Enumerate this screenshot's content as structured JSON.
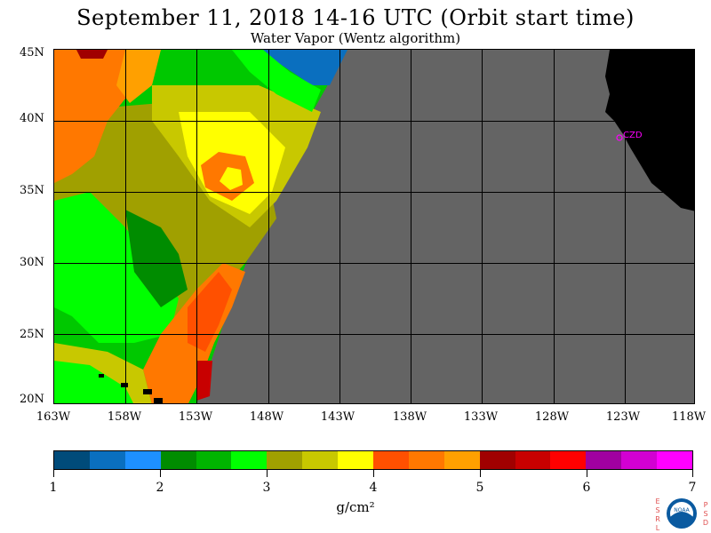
{
  "title": "September 11, 2018  14-16 UTC  (Orbit start time)",
  "subtitle": "Water Vapor (Wentz algorithm)",
  "map": {
    "lat_labels": [
      "45N",
      "40N",
      "35N",
      "30N",
      "25N",
      "20N"
    ],
    "lon_labels": [
      "163W",
      "158W",
      "153W",
      "148W",
      "143W",
      "138W",
      "133W",
      "128W",
      "123W",
      "118W"
    ],
    "station_label": "CZD",
    "colors": {
      "no_data": "#646464",
      "land": "#000000",
      "grid": "#000000",
      "station": "#ff00ff"
    }
  },
  "colorbar": {
    "colors": [
      "#004b7a",
      "#0a6fbf",
      "#1e90ff",
      "#008c00",
      "#00b400",
      "#00ff00",
      "#a0a000",
      "#c8c800",
      "#ffff00",
      "#ff5000",
      "#ff7800",
      "#ffa000",
      "#a00000",
      "#c80000",
      "#ff0000",
      "#a000a0",
      "#d200d2",
      "#ff00ff"
    ],
    "tick_labels": [
      "1",
      "2",
      "3",
      "4",
      "5",
      "6",
      "7"
    ],
    "units": "g/cm²"
  },
  "logo": {
    "left_letters": [
      "E",
      "S",
      "R",
      "L"
    ],
    "right_letters": [
      "P",
      "S",
      "D"
    ],
    "center_text": "NOAA"
  }
}
